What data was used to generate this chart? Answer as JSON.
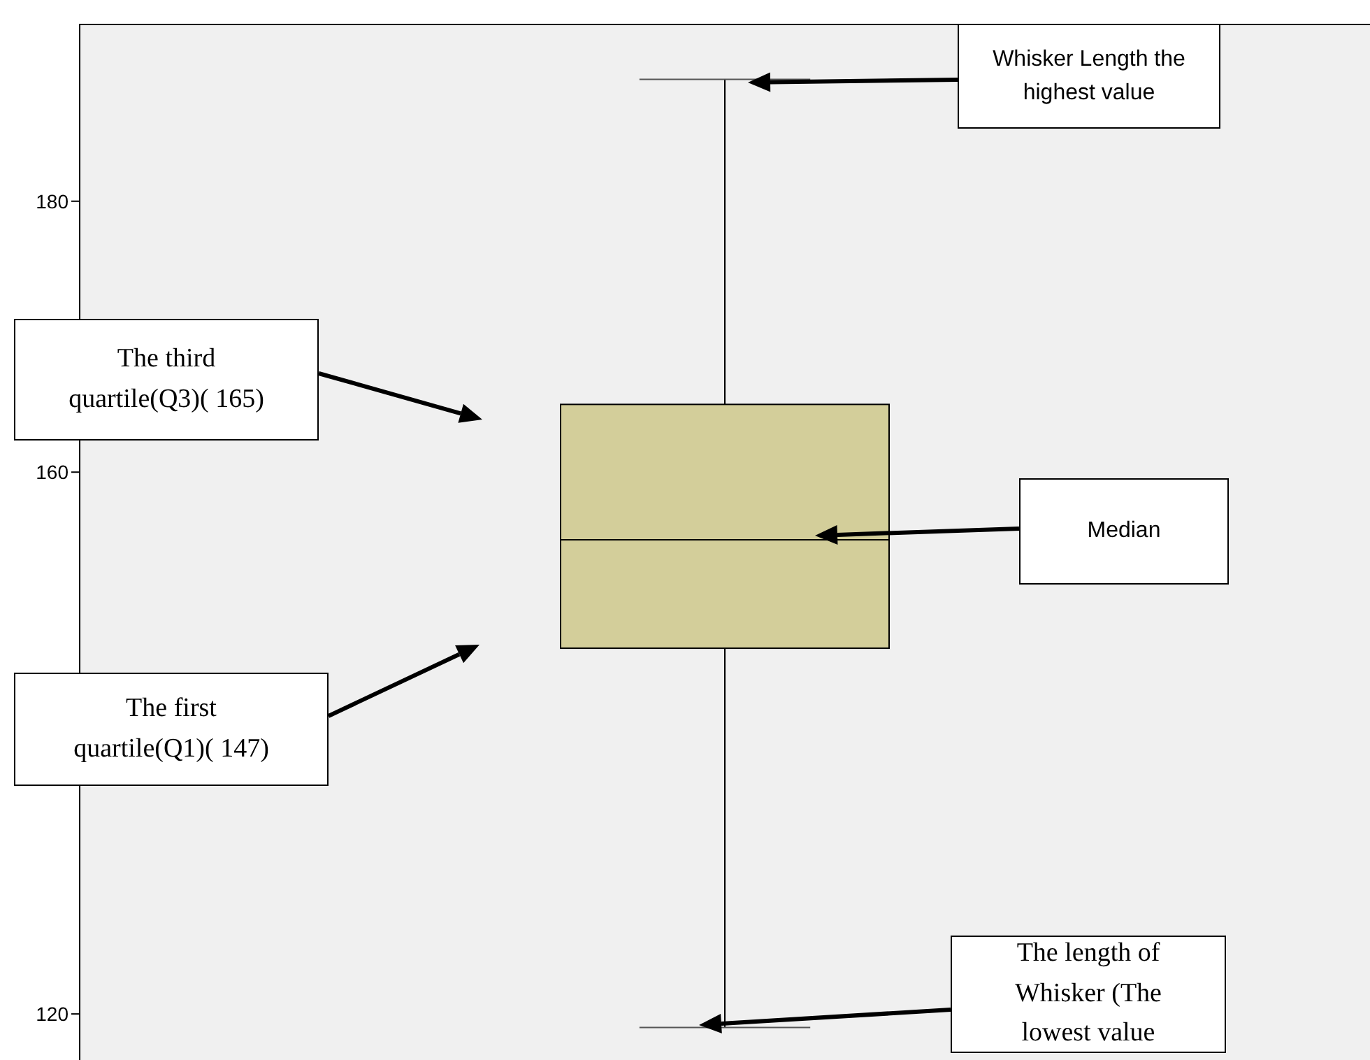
{
  "chart_data": {
    "type": "box",
    "categories": [
      null
    ],
    "boxes": [
      {
        "low": 119,
        "q1": 147,
        "median": 155,
        "q3": 165,
        "high": 189
      }
    ],
    "color": "#d3ce9a",
    "ylim": [
      116.6,
      193.1
    ],
    "yticks": [
      120,
      160,
      180
    ],
    "tick_labels": "y",
    "annotations": [
      "Whisker Length the highest value",
      "The third quartile(Q3)( 165)",
      "Median",
      "The first quartile(Q1)( 147)",
      "The length of Whisker (The lowest value"
    ]
  }
}
